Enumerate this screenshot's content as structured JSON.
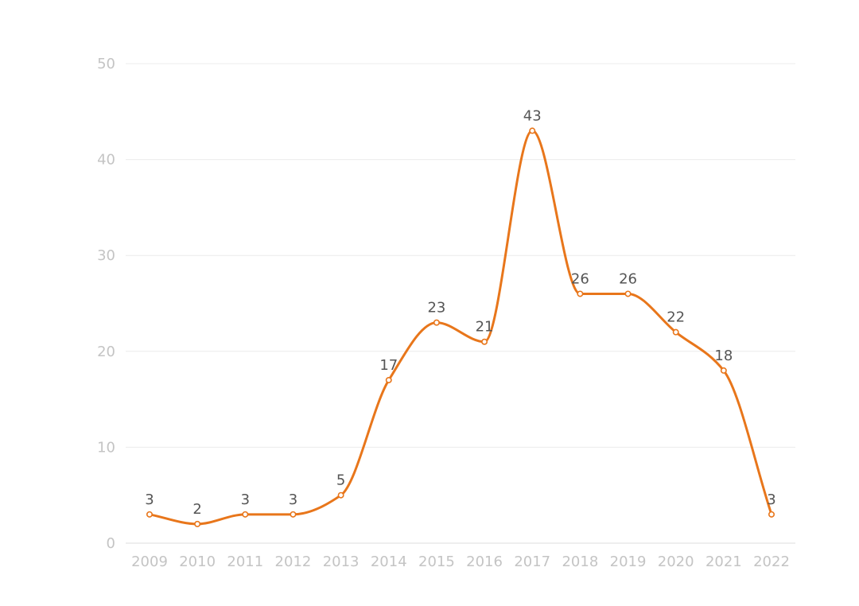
{
  "chart_data": {
    "type": "line",
    "x": [
      "2009",
      "2010",
      "2011",
      "2012",
      "2013",
      "2014",
      "2015",
      "2016",
      "2017",
      "2018",
      "2019",
      "2020",
      "2021",
      "2022"
    ],
    "series": [
      {
        "values": [
          3,
          2,
          3,
          3,
          5,
          17,
          23,
          21,
          43,
          26,
          26,
          22,
          18,
          3
        ],
        "color": "#e8761b"
      }
    ],
    "ylim": [
      0,
      50
    ],
    "yticks": [
      0,
      10,
      20,
      30,
      40,
      50
    ],
    "smooth": true,
    "grid": "horizontal",
    "data_labels": true,
    "legend": "none"
  }
}
